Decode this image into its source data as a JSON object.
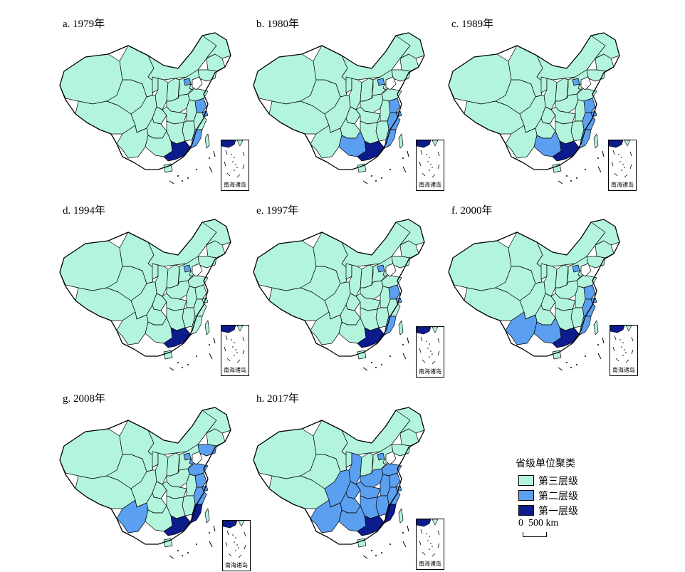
{
  "colors": {
    "tier3": "#b3f5dc",
    "tier2": "#5b9ff0",
    "tier1": "#0c1c8c",
    "outline": "#000000",
    "hole": "#ffffff"
  },
  "legend": {
    "title": "省级单位聚类",
    "items": [
      {
        "label": "第三层级",
        "tier": "tier3"
      },
      {
        "label": "第二层级",
        "tier": "tier2"
      },
      {
        "label": "第一层级",
        "tier": "tier1"
      }
    ]
  },
  "scale": {
    "label": "0  500 km"
  },
  "inset_label": "南海诸岛",
  "panels": [
    {
      "label": "a. 1979年",
      "tier1": [
        "guangdong"
      ],
      "tier2": [
        "jiangsu",
        "shanghai",
        "fujian",
        "beijing"
      ]
    },
    {
      "label": "b. 1980年",
      "tier1": [
        "guangdong"
      ],
      "tier2": [
        "jiangsu",
        "shanghai",
        "zhejiang",
        "fujian",
        "guangxi",
        "beijing"
      ]
    },
    {
      "label": "c. 1989年",
      "tier1": [
        "guangdong"
      ],
      "tier2": [
        "jiangsu",
        "shanghai",
        "zhejiang",
        "fujian",
        "guangxi",
        "beijing"
      ]
    },
    {
      "label": "d. 1994年",
      "tier1": [
        "guangdong"
      ],
      "tier2": [
        "beijing"
      ]
    },
    {
      "label": "e. 1997年",
      "tier1": [
        "guangdong"
      ],
      "tier2": [
        "jiangsu",
        "shanghai",
        "fujian",
        "beijing"
      ]
    },
    {
      "label": "f. 2000年",
      "tier1": [
        "guangdong"
      ],
      "tier2": [
        "jiangsu",
        "shanghai",
        "zhejiang",
        "fujian",
        "guangxi",
        "yunnan",
        "beijing"
      ]
    },
    {
      "label": "g. 2008年",
      "tier1": [
        "guangdong",
        "fujian"
      ],
      "tier2": [
        "jiangsu",
        "shanghai",
        "zhejiang",
        "shandong",
        "liaoning",
        "yunnan",
        "beijing",
        "tianjin"
      ]
    },
    {
      "label": "h. 2017年",
      "tier1": [
        "guangdong",
        "fujian"
      ],
      "tier2": [
        "jiangsu",
        "shanghai",
        "zhejiang",
        "shandong",
        "henan",
        "hubei",
        "hunan",
        "jiangxi",
        "anhui",
        "guangxi",
        "yunnan",
        "guizhou",
        "sichuan",
        "chongqing",
        "shaanxi",
        "beijing"
      ]
    }
  ]
}
